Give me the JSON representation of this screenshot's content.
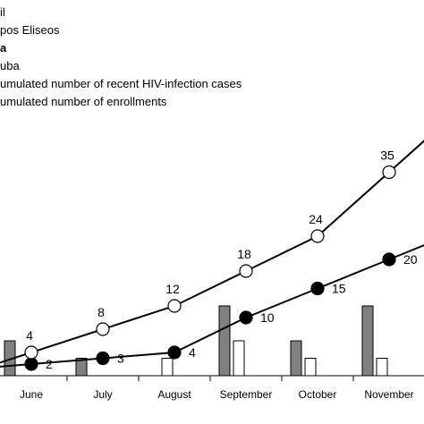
{
  "chart_data": {
    "type": "bar",
    "categories": [
      "June",
      "July",
      "August",
      "September",
      "October",
      "November"
    ],
    "series": [
      {
        "name": "pos Eliseos",
        "kind": "bar",
        "color": "#808080",
        "values": [
          6,
          3,
          0,
          12,
          6,
          12
        ]
      },
      {
        "name": "a",
        "kind": "bar",
        "color": "#ffffff",
        "values": [
          0,
          0,
          3,
          6,
          3,
          3
        ]
      },
      {
        "name": "umulated number of recent HIV-infection cases",
        "kind": "line",
        "marker": "filled",
        "values": [
          2,
          3,
          4,
          10,
          15,
          20
        ]
      },
      {
        "name": "umulated number of enrollments",
        "kind": "line",
        "marker": "open",
        "values": [
          4,
          8,
          12,
          18,
          24,
          35
        ]
      }
    ],
    "legend": {
      "position": "top-left",
      "entries": [
        "il",
        "pos Eliseos",
        "a",
        "uba",
        "umulated number of recent HIV-infection cases",
        "umulated number of enrollments"
      ]
    },
    "ylim": [
      0,
      40
    ],
    "grid": false
  }
}
